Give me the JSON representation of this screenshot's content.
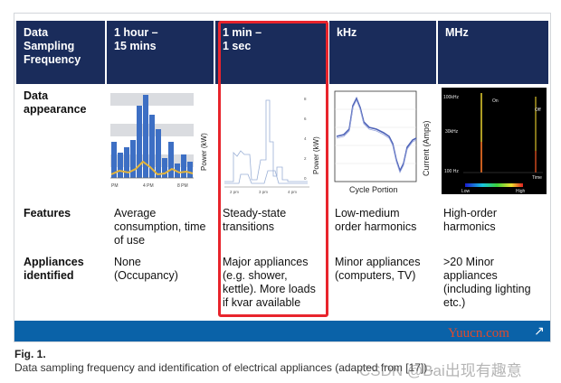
{
  "table": {
    "columns": [
      {
        "line1": "Data",
        "line2": "Sampling",
        "line3": "Frequency"
      },
      {
        "line1": "1 hour –",
        "line2": "15 mins",
        "line3": ""
      },
      {
        "line1": "1 min –",
        "line2": "1 sec",
        "line3": ""
      },
      {
        "line1": "kHz",
        "line2": "",
        "line3": ""
      },
      {
        "line1": "MHz",
        "line2": "",
        "line3": ""
      }
    ],
    "row_appearance": {
      "label_line1": "Data",
      "label_line2": "appearance"
    },
    "row_features": {
      "label": "Features",
      "cells": [
        [
          "Average",
          "consumption, time",
          "of use"
        ],
        [
          "Steady-state",
          "transitions"
        ],
        [
          "Low-medium",
          "order harmonics"
        ],
        [
          "High-order",
          "harmonics"
        ]
      ]
    },
    "row_appliances": {
      "label_line1": "Appliances",
      "label_line2": "identified",
      "cells": [
        [
          "None",
          "(Occupancy)"
        ],
        [
          "Major appliances",
          "(e.g. shower,",
          "kettle). More loads",
          "if kvar available"
        ],
        [
          "Minor appliances",
          "(computers, TV)"
        ],
        [
          ">20 Minor",
          "appliances",
          "(including lighting",
          "etc.)"
        ]
      ]
    }
  },
  "thumbs": {
    "hourly": {
      "ylabel": "Power (kW)",
      "xticks": [
        "PM",
        "4 PM",
        "8 PM"
      ]
    },
    "minute": {
      "ylabel": "Power (kW)",
      "xticks": [
        "2 pm",
        "3 pm",
        "4 pm"
      ],
      "yticks": [
        "8",
        "6",
        "4",
        "2",
        "0"
      ]
    },
    "khz": {
      "ylabel": "Current (Amps)",
      "xlabel": "Cycle Portion"
    },
    "mhz": {
      "yticks": [
        "100kHz",
        "30kHz",
        "100 Hz"
      ],
      "labels": [
        "On",
        "Off",
        "Time",
        "Low",
        "High"
      ]
    }
  },
  "watermark_top": "Yuucn.com",
  "caption": {
    "label": "Fig. 1.",
    "text": "Data sampling frequency and identification of electrical appliances (adapted from [17]) .",
    "watermark": "CSDN @Bai出现有趣意"
  },
  "colors": {
    "header_bg": "#1a2c5b",
    "highlight": "#e8242c",
    "footer_bar": "#0a62a8"
  }
}
